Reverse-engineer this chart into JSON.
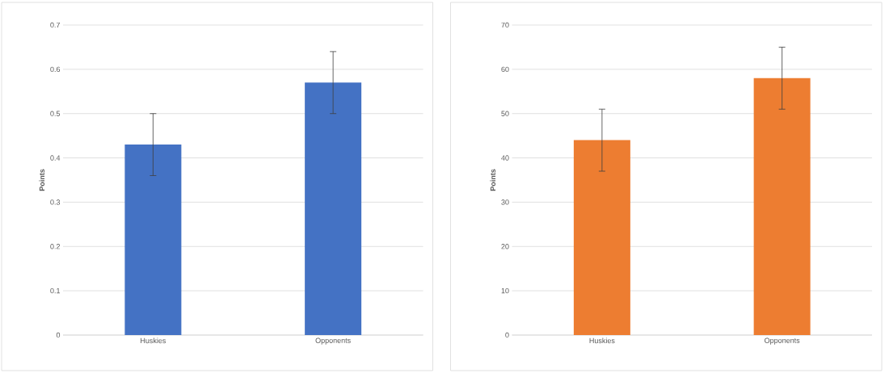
{
  "chart_data": [
    {
      "type": "bar",
      "ylabel": "Points",
      "categories": [
        "Huskies",
        "Opponents"
      ],
      "values": [
        0.43,
        0.57
      ],
      "errors": [
        0.07,
        0.07
      ],
      "color": "#4472c4",
      "ylim": [
        0,
        0.7
      ],
      "yticks": [
        0,
        0.1,
        0.2,
        0.3,
        0.4,
        0.5,
        0.6,
        0.7
      ],
      "grid": "y"
    },
    {
      "type": "bar",
      "ylabel": "Points",
      "categories": [
        "Huskies",
        "Opponents"
      ],
      "values": [
        44,
        58
      ],
      "errors": [
        7,
        7
      ],
      "color": "#ed7d31",
      "ylim": [
        0,
        70
      ],
      "yticks": [
        0,
        10,
        20,
        30,
        40,
        50,
        60,
        70
      ],
      "grid": "y"
    }
  ]
}
